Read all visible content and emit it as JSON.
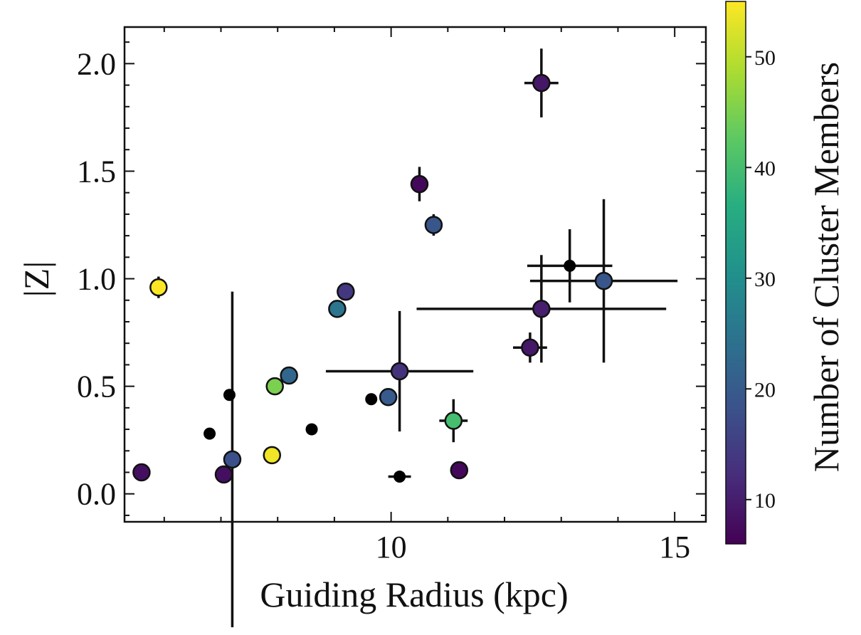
{
  "chart_data": {
    "type": "scatter",
    "title": "",
    "xlabel": "Guiding Radius (kpc)",
    "ylabel": "|Z|",
    "xlim": [
      5.3,
      15.55
    ],
    "ylim": [
      -0.13,
      2.17
    ],
    "x_ticks": [
      10,
      15
    ],
    "x_tick_labels": [
      "10",
      "15"
    ],
    "y_ticks": [
      0.0,
      0.5,
      1.0,
      1.5,
      2.0
    ],
    "y_tick_labels": [
      "0.0",
      "0.5",
      "1.0",
      "1.5",
      "2.0"
    ],
    "colorbar": {
      "label": "Number of Cluster Members",
      "range": [
        6,
        55
      ],
      "ticks": [
        10,
        20,
        30,
        40,
        50
      ],
      "tick_labels": [
        "10",
        "20",
        "30",
        "40",
        "50"
      ],
      "colormap": "viridis"
    },
    "no_members_color": "#000000",
    "grid": false,
    "points": [
      {
        "x": 5.9,
        "y": 0.96,
        "members": 55,
        "yerr": 0.05
      },
      {
        "x": 5.6,
        "y": 0.1,
        "members": 8
      },
      {
        "x": 7.15,
        "y": 0.46,
        "members": null
      },
      {
        "x": 6.8,
        "y": 0.28,
        "members": null
      },
      {
        "x": 7.05,
        "y": 0.09,
        "members": 8
      },
      {
        "x": 7.2,
        "y": 0.16,
        "members": 18,
        "yerr": 0.78
      },
      {
        "x": 7.9,
        "y": 0.18,
        "members": 54
      },
      {
        "x": 7.95,
        "y": 0.5,
        "members": 45
      },
      {
        "x": 8.2,
        "y": 0.55,
        "members": 22
      },
      {
        "x": 8.6,
        "y": 0.3,
        "members": null
      },
      {
        "x": 9.05,
        "y": 0.86,
        "members": 25
      },
      {
        "x": 9.2,
        "y": 0.94,
        "members": 14
      },
      {
        "x": 9.65,
        "y": 0.44,
        "members": null
      },
      {
        "x": 9.95,
        "y": 0.45,
        "members": 20
      },
      {
        "x": 10.15,
        "y": 0.57,
        "members": 13,
        "xerr": 1.3,
        "yerr": 0.28
      },
      {
        "x": 10.15,
        "y": 0.08,
        "members": null,
        "xerr": 0.2
      },
      {
        "x": 10.5,
        "y": 1.44,
        "members": 7,
        "yerr": 0.08
      },
      {
        "x": 10.75,
        "y": 1.25,
        "members": 19,
        "xerr": 0.15,
        "yerr": 0.05
      },
      {
        "x": 11.1,
        "y": 0.34,
        "members": 40,
        "xerr": 0.25,
        "yerr": 0.1
      },
      {
        "x": 11.2,
        "y": 0.11,
        "members": 7
      },
      {
        "x": 12.45,
        "y": 0.68,
        "members": 9,
        "xerr": 0.3,
        "yerr": 0.07
      },
      {
        "x": 12.65,
        "y": 0.86,
        "members": 10,
        "xerr": 2.2,
        "yerr": 0.25
      },
      {
        "x": 12.65,
        "y": 1.91,
        "members": 9,
        "xerr": 0.3,
        "yerr": 0.16
      },
      {
        "x": 13.15,
        "y": 1.06,
        "members": null,
        "xerr": 0.75,
        "yerr": 0.17
      },
      {
        "x": 13.75,
        "y": 0.99,
        "members": 19,
        "xerr": 1.3,
        "yerr": 0.38
      }
    ]
  }
}
